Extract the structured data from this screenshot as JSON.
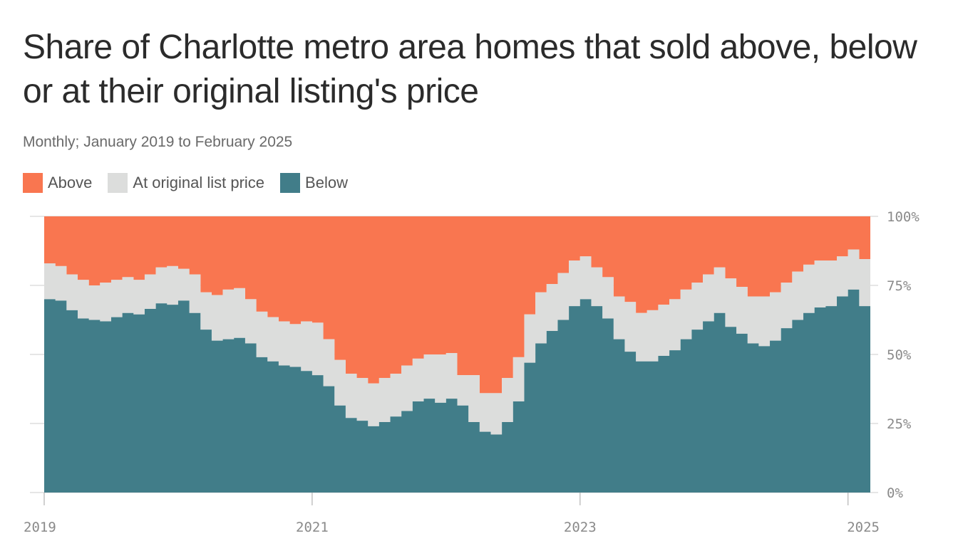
{
  "title": "Share of Charlotte metro area homes that sold above, below or at their original listing's price",
  "subtitle": "Monthly; January 2019 to February 2025",
  "legend": [
    {
      "label": "Above",
      "color": "#f97650"
    },
    {
      "label": "At original list price",
      "color": "#dcdddc"
    },
    {
      "label": "Below",
      "color": "#417d89"
    }
  ],
  "chart_data": {
    "type": "area",
    "x_start": "2019-01",
    "x_end": "2025-02",
    "x_ticks": [
      "2019",
      "2021",
      "2023",
      "2025"
    ],
    "y_ticks": [
      "100%",
      "75%",
      "50%",
      "25%",
      "0%"
    ],
    "ylim": [
      0,
      100
    ],
    "stacked": true,
    "series": [
      {
        "name": "Below",
        "color": "#417d89",
        "values": [
          70,
          69.5,
          66,
          63,
          62.5,
          62,
          63.5,
          65,
          64.5,
          66.5,
          68.5,
          68,
          69.5,
          65,
          59,
          55,
          55.5,
          56,
          54,
          49,
          47.5,
          46,
          45.5,
          44,
          42.5,
          38.5,
          31.5,
          27,
          26,
          24,
          25.5,
          27.5,
          29.5,
          33,
          34,
          32.5,
          34,
          31.5,
          25.5,
          22,
          21,
          25.5,
          33,
          47,
          54,
          58.5,
          62.5,
          67.5,
          70,
          67.5,
          63,
          55.5,
          51,
          47.5,
          47.5,
          49.5,
          51.5,
          55.5,
          59,
          62,
          65,
          60,
          57.5,
          54,
          53,
          55,
          59.5,
          62.5,
          65,
          67,
          67.5,
          71,
          73.5,
          67.5
        ]
      },
      {
        "name": "At original list price",
        "color": "#dcdddc",
        "values": [
          13,
          12.5,
          13,
          14,
          12.5,
          14,
          13.5,
          13,
          12.5,
          12.5,
          13,
          14,
          11.5,
          14,
          13.5,
          16.5,
          18,
          18,
          16,
          16.5,
          16,
          16,
          15.5,
          18,
          19,
          17,
          16.5,
          16,
          15.5,
          15.5,
          16,
          15.5,
          16.5,
          15.5,
          16,
          17.5,
          16.5,
          11,
          17,
          14,
          15,
          16,
          16,
          17.5,
          18.5,
          17,
          17,
          16.5,
          15.5,
          14,
          15,
          15.5,
          18,
          17.5,
          18.5,
          18.5,
          18.5,
          18,
          17,
          17,
          16.5,
          17.5,
          17,
          17,
          18,
          17.5,
          16.5,
          17.5,
          17.5,
          17,
          16.5,
          14.5,
          14.5,
          17
        ]
      }
    ]
  }
}
